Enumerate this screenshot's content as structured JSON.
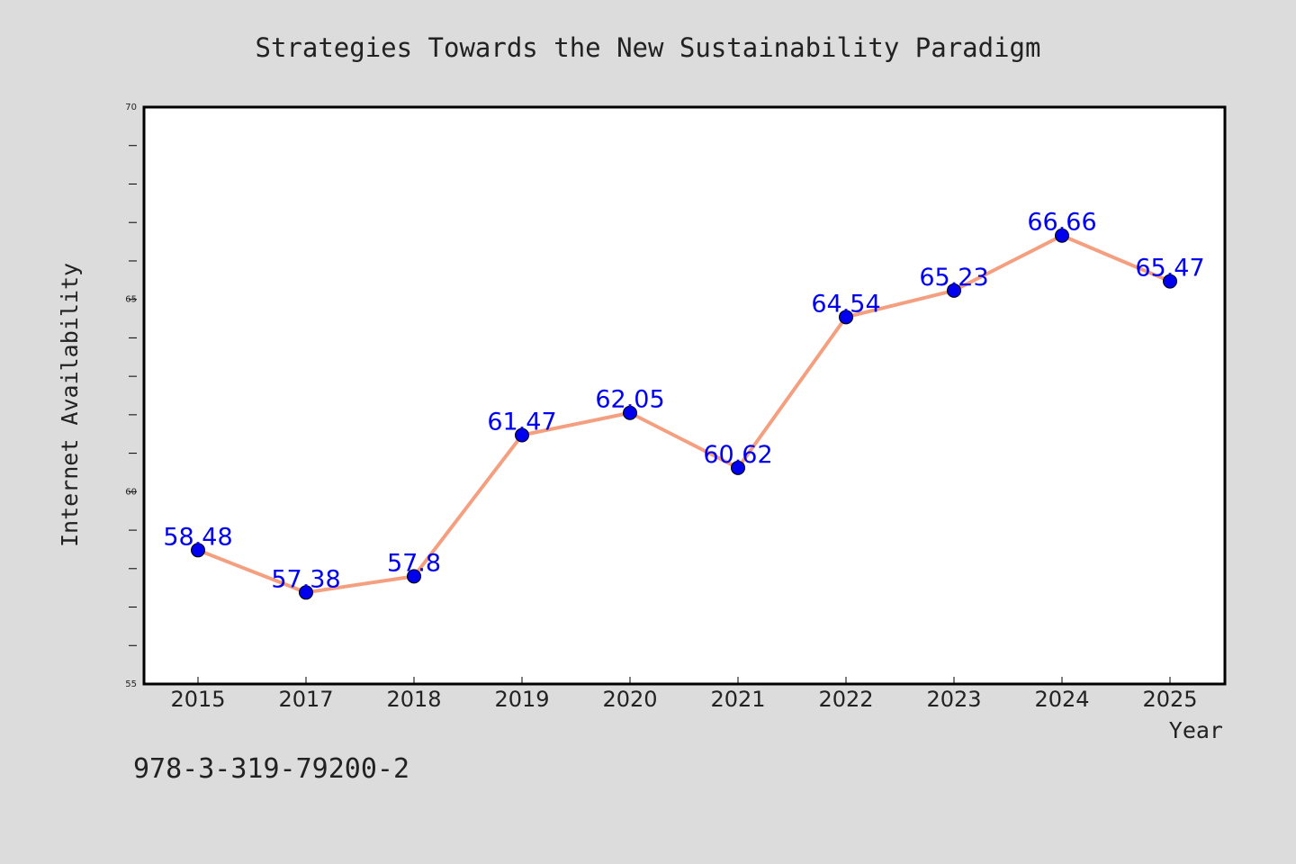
{
  "chart_data": {
    "type": "line",
    "title": "Strategies Towards the New Sustainability Paradigm",
    "xlabel": "Year",
    "ylabel": "Internet Availability",
    "categories": [
      "2015",
      "2017",
      "2018",
      "2019",
      "2020",
      "2021",
      "2022",
      "2023",
      "2024",
      "2025"
    ],
    "series": [
      {
        "values": [
          58.48,
          57.38,
          57.8,
          61.47,
          62.05,
          60.62,
          64.54,
          65.23,
          66.66,
          65.47
        ],
        "line_color": "#f4a080",
        "marker_color": "#0000ee"
      }
    ],
    "ylim": [
      55,
      70
    ],
    "yticks": [
      "55",
      "60",
      "65",
      "70"
    ],
    "grid": false,
    "legend": "none"
  },
  "footer_text": "978-3-319-79200-2",
  "colors": {
    "background": "#dcdcdc",
    "plot_background": "#ffffff",
    "label_color": "#0000ee",
    "text_color": "#222222"
  }
}
